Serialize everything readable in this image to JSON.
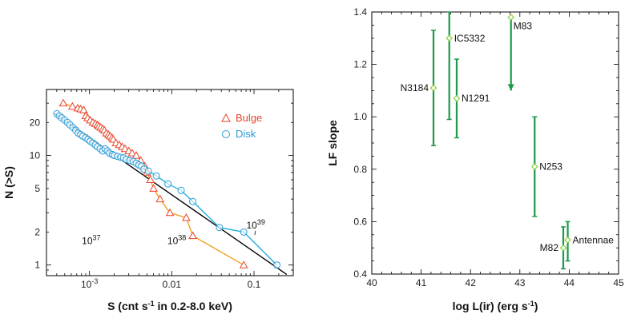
{
  "colors": {
    "bulge": "#e8442a",
    "bulge_line": "#f0a020",
    "disk": "#2a9bd8",
    "disk_line": "#22b0e0",
    "fit": "#000000",
    "errbar": "#1a9a4a",
    "point": "#8ccf3c"
  },
  "chart_data": [
    {
      "type": "scatter",
      "xlabel": "S (cnt s",
      "xlabel_sup": "-1",
      "xlabel_rest": " in 0.2-8.0 keV)",
      "ylabel": "N (>S)",
      "xscale": "log",
      "yscale": "log",
      "xlim": [
        0.0003,
        0.3
      ],
      "ylim": [
        0.8,
        40
      ],
      "xticks": [
        {
          "v": 0.001,
          "base": "10",
          "exp": "-3"
        },
        {
          "v": 0.01,
          "label": "0.01"
        },
        {
          "v": 0.1,
          "label": "0.1"
        }
      ],
      "yticks": [
        {
          "v": 1,
          "label": "1"
        },
        {
          "v": 2,
          "label": "2"
        },
        {
          "v": 5,
          "label": "5"
        },
        {
          "v": 10,
          "label": "10"
        },
        {
          "v": 20,
          "label": "20"
        }
      ],
      "legend": [
        {
          "name": "Bulge",
          "marker": "triangle"
        },
        {
          "name": "Disk",
          "marker": "circle"
        }
      ],
      "legend_position": "top-right",
      "annotations": [
        {
          "base": "10",
          "exp": "37",
          "x": 0.00105,
          "y": 1.55
        },
        {
          "base": "10",
          "exp": "38",
          "x": 0.0115,
          "y": 1.55
        },
        {
          "base": "10",
          "exp": "39",
          "x": 0.105,
          "y": 2.15
        }
      ],
      "fit_line": [
        [
          0.00038,
          24
        ],
        [
          0.25,
          0.82
        ]
      ],
      "series": [
        {
          "name": "Bulge",
          "marker": "triangle",
          "x": [
            0.00048,
            0.00062,
            0.00072,
            0.00078,
            0.00085,
            0.0009,
            0.00095,
            0.00102,
            0.0011,
            0.00118,
            0.00125,
            0.0013,
            0.00137,
            0.00145,
            0.00152,
            0.0016,
            0.0017,
            0.00178,
            0.00188,
            0.00195,
            0.0021,
            0.0023,
            0.0025,
            0.0027,
            0.003,
            0.0033,
            0.0037,
            0.0042,
            0.0047,
            0.005,
            0.0055,
            0.006,
            0.0072,
            0.0095,
            0.015,
            0.018,
            0.075
          ],
          "y": [
            30,
            28,
            27,
            26.5,
            26,
            23,
            22,
            21,
            20,
            19.5,
            19,
            18.5,
            18,
            17.5,
            17,
            16,
            15.5,
            15,
            14.5,
            14,
            13,
            12.5,
            12,
            11.5,
            11,
            10.5,
            10,
            9,
            8,
            7,
            6,
            5,
            4,
            3,
            2.7,
            1.85,
            1
          ]
        },
        {
          "name": "Disk",
          "marker": "circle",
          "x": [
            0.0004,
            0.00043,
            0.00046,
            0.0005,
            0.00054,
            0.00058,
            0.00063,
            0.00068,
            0.00073,
            0.00078,
            0.00083,
            0.0009,
            0.00096,
            0.00102,
            0.0011,
            0.00118,
            0.00125,
            0.00135,
            0.00145,
            0.00155,
            0.00165,
            0.00175,
            0.0019,
            0.002,
            0.0022,
            0.0024,
            0.0026,
            0.0028,
            0.0031,
            0.0034,
            0.0037,
            0.004,
            0.0043,
            0.0046,
            0.0052,
            0.0065,
            0.009,
            0.013,
            0.018,
            0.038,
            0.075,
            0.19
          ],
          "y": [
            24,
            23,
            22,
            21,
            20,
            19,
            18,
            17,
            16,
            15.5,
            15,
            14.5,
            14,
            13.5,
            13,
            12.5,
            12,
            11.5,
            11,
            11.5,
            11,
            10.5,
            10.2,
            10,
            9.8,
            9.6,
            9.5,
            9.2,
            9,
            8.8,
            8.5,
            8.2,
            8,
            7.5,
            7.2,
            6.5,
            5.5,
            4.8,
            3.8,
            2.2,
            2,
            1
          ]
        }
      ]
    },
    {
      "type": "scatter",
      "xlabel": "log L(ir) (erg s",
      "xlabel_sup": "-1",
      "xlabel_rest": ")",
      "ylabel": "LF slope",
      "xlim": [
        40,
        45
      ],
      "ylim": [
        0.4,
        1.4
      ],
      "xticks": [
        40,
        41,
        42,
        43,
        44,
        45
      ],
      "yticks": [
        0.4,
        0.6,
        0.8,
        1.0,
        1.2,
        1.4
      ],
      "ytick_labels": [
        "0.4",
        "0.6",
        "0.8",
        "1.0",
        "1.2",
        "1.4"
      ],
      "points": [
        {
          "name": "N3184",
          "x": 41.25,
          "y": 1.11,
          "ylow": 0.89,
          "yhigh": 1.33,
          "label_side": "left"
        },
        {
          "name": "IC5332",
          "x": 41.57,
          "y": 1.3,
          "ylow": 0.99,
          "yhigh": 1.4,
          "label_side": "right"
        },
        {
          "name": "N1291",
          "x": 41.72,
          "y": 1.07,
          "ylow": 0.92,
          "yhigh": 1.22,
          "label_side": "right"
        },
        {
          "name": "M83",
          "x": 42.82,
          "y": 1.38,
          "ylow": 1.1,
          "yhigh": 1.38,
          "label_side": "right",
          "upper_limit_arrow": true
        },
        {
          "name": "N253",
          "x": 43.3,
          "y": 0.81,
          "ylow": 0.62,
          "yhigh": 1.0,
          "label_side": "right"
        },
        {
          "name": "M82",
          "x": 43.88,
          "y": 0.5,
          "ylow": 0.42,
          "yhigh": 0.58,
          "label_side": "left"
        },
        {
          "name": "Antennae",
          "x": 43.97,
          "y": 0.53,
          "ylow": 0.45,
          "yhigh": 0.6,
          "label_side": "right"
        }
      ]
    }
  ]
}
